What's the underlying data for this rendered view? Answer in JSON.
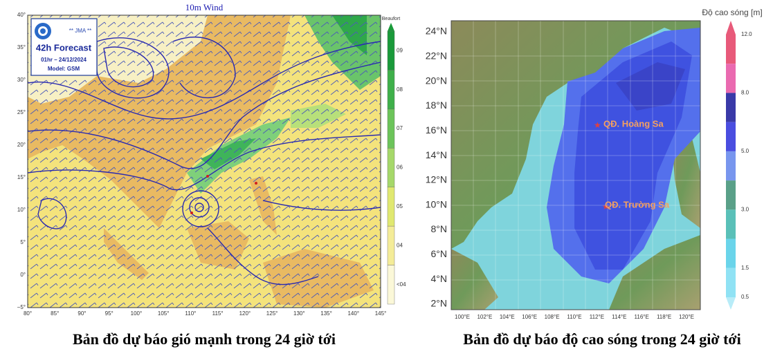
{
  "left_map": {
    "title": "10m Wind",
    "badge": {
      "agency": "** JMA **",
      "forecast": "42h Forecast",
      "time": "01hr – 24/12/2024",
      "model": "Model: GSM"
    },
    "colorbar": {
      "title": "Beaufort",
      "labels": [
        "09",
        "08",
        "07",
        "06",
        "05",
        "04",
        "<04"
      ]
    },
    "lon_labels": [
      "80°",
      "85°",
      "90°",
      "95°",
      "100°",
      "105°",
      "110°",
      "115°",
      "120°",
      "125°",
      "130°",
      "135°",
      "140°",
      "145°"
    ],
    "lat_labels": [
      "40°",
      "35°",
      "30°",
      "25°",
      "20°",
      "15°",
      "10°",
      "5°",
      "0°",
      "−5°"
    ],
    "caption": "Bản đồ dự báo gió mạnh trong 24 giờ tới"
  },
  "right_map": {
    "colorbar": {
      "title": "Độ cao sóng [m]",
      "labels": [
        "12.0",
        "8.0",
        "5.0",
        "3.0",
        "1.5",
        "0.5"
      ]
    },
    "lat_labels": [
      "24°N",
      "22°N",
      "20°N",
      "18°N",
      "16°N",
      "14°N",
      "12°N",
      "10°N",
      "8°N",
      "6°N",
      "4°N",
      "2°N"
    ],
    "lon_labels": [
      "100°E",
      "102°E",
      "104°E",
      "106°E",
      "108°E",
      "110°E",
      "112°E",
      "114°E",
      "116°E",
      "118°E",
      "120°E"
    ],
    "places": [
      "QĐ. Hoàng Sa",
      "QĐ. Trường Sa"
    ],
    "caption": "Bản đồ dự báo độ cao sóng trong 24 giờ tới"
  }
}
